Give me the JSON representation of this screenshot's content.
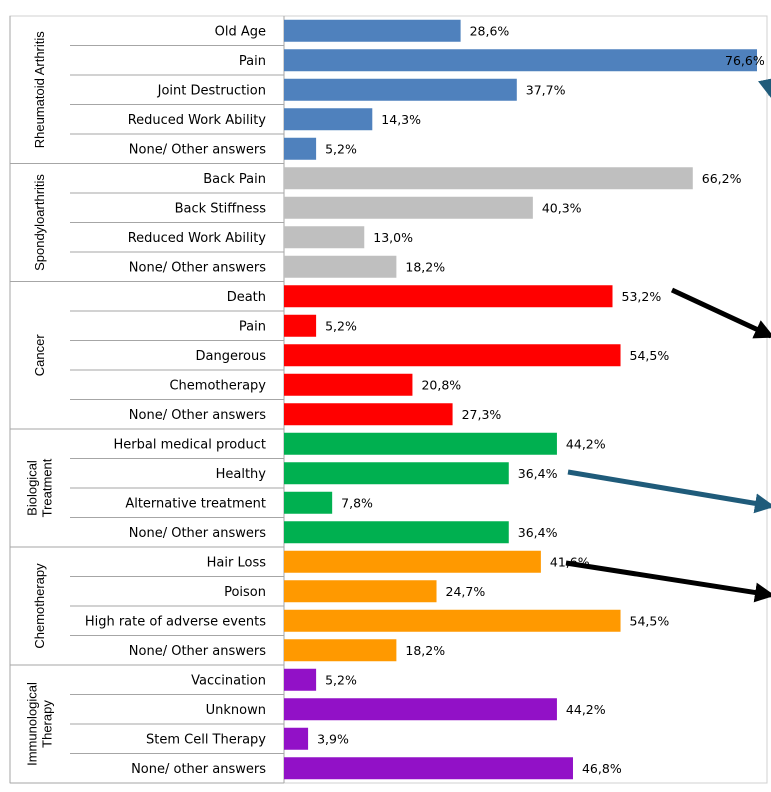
{
  "chart_data": {
    "type": "bar",
    "orientation": "horizontal",
    "groups": [
      {
        "name": "Rheumatoid Arthritis",
        "color": "#4f81bd",
        "categories": [
          "Old Age",
          "Pain",
          "Joint Destruction",
          "Reduced Work Ability",
          "None/ Other answers"
        ],
        "values": [
          28.6,
          76.6,
          37.7,
          14.3,
          5.2
        ],
        "value_labels": [
          "28,6%",
          "76,6%",
          "37,7%",
          "14,3%",
          "5,2%"
        ]
      },
      {
        "name": "Spondyloarthritis",
        "color": "#bfbfbf",
        "categories": [
          "Back Pain",
          "Back Stiffness",
          "Reduced Work Ability",
          "None/ Other answers"
        ],
        "values": [
          66.2,
          40.3,
          13.0,
          18.2
        ],
        "value_labels": [
          "66,2%",
          "40,3%",
          "13,0%",
          "18,2%"
        ]
      },
      {
        "name": "Cancer",
        "color": "#ff0000",
        "categories": [
          "Death",
          "Pain",
          "Dangerous",
          "Chemotherapy",
          "None/ Other answers"
        ],
        "values": [
          53.2,
          5.2,
          54.5,
          20.8,
          27.3
        ],
        "value_labels": [
          "53,2%",
          "5,2%",
          "54,5%",
          "20,8%",
          "27,3%"
        ]
      },
      {
        "name": "Biological Treatment",
        "name_lines": [
          "Biological",
          "Treatment"
        ],
        "color": "#00b050",
        "categories": [
          "Herbal medical product",
          "Healthy",
          "Alternative treatment",
          "None/ Other answers"
        ],
        "values": [
          44.2,
          36.4,
          7.8,
          36.4
        ],
        "value_labels": [
          "44,2%",
          "36,4%",
          "7,8%",
          "36,4%"
        ]
      },
      {
        "name": "Chemotherapy",
        "color": "#ff9900",
        "categories": [
          "Hair Loss",
          "Poison",
          "High rate of adverse events",
          "None/ Other answers"
        ],
        "values": [
          41.6,
          24.7,
          54.5,
          18.2
        ],
        "value_labels": [
          "41,6%",
          "24,7%",
          "54,5%",
          "18,2%"
        ]
      },
      {
        "name": "Immunological Therapy",
        "name_lines": [
          "Immunological",
          "Therapy"
        ],
        "color": "#9211c7",
        "categories": [
          "Vaccination",
          "Unknown",
          "Stem Cell Therapy",
          "None/ other answers"
        ],
        "values": [
          5.2,
          44.2,
          3.9,
          46.8
        ],
        "value_labels": [
          "5,2%",
          "44,2%",
          "3,9%",
          "46,8%"
        ]
      }
    ],
    "xlim": [
      0,
      76.6
    ],
    "grid": false,
    "legend": "none",
    "annotations": [
      {
        "type": "arrow",
        "color": "#000000",
        "points_to": "Death"
      },
      {
        "type": "arrow",
        "color": "#1f5b7a",
        "points_to": "Healthy"
      },
      {
        "type": "arrow",
        "color": "#000000",
        "points_to": "Poison"
      },
      {
        "type": "arrow",
        "color": "#1f5b7a",
        "points_to": "Pain"
      }
    ]
  }
}
